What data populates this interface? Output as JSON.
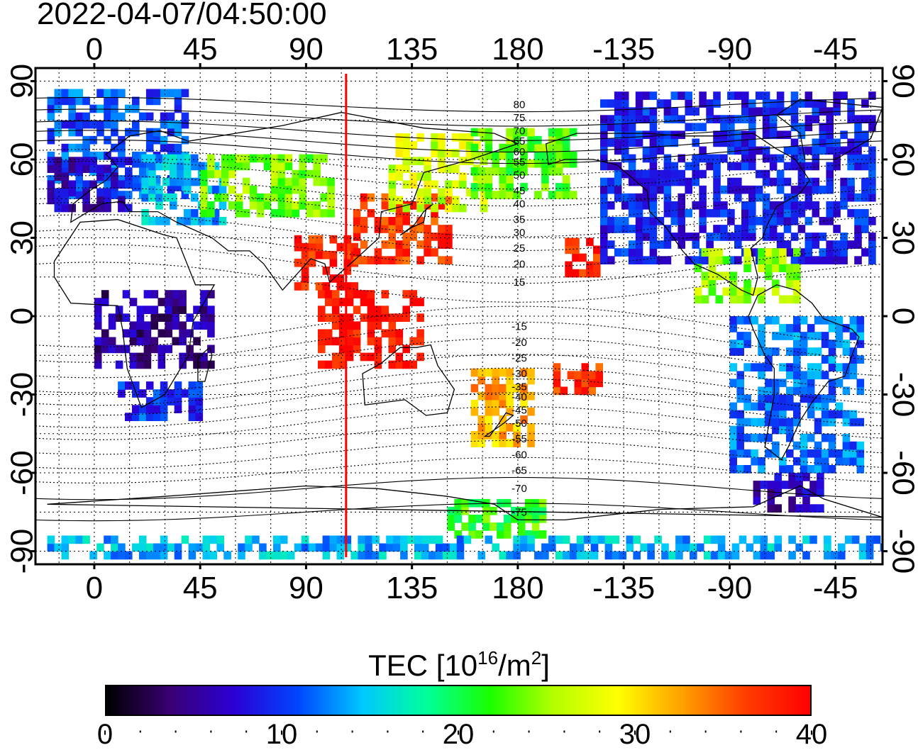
{
  "title": "2022-04-07/04:50:00",
  "map": {
    "top_axis_labels": [
      "0",
      "45",
      "90",
      "135",
      "180",
      "-135",
      "-90",
      "-45"
    ],
    "bottom_axis_labels": [
      "0",
      "45",
      "90",
      "135",
      "180",
      "-135",
      "-90",
      "-45"
    ],
    "left_axis_labels": [
      "90",
      "60",
      "30",
      "0",
      "-30",
      "-60",
      "-90"
    ],
    "right_axis_labels": [
      "90",
      "60",
      "30",
      "0",
      "-30",
      "-60",
      "-90"
    ],
    "longitude_range": [
      -25,
      335
    ],
    "latitude_range": [
      -95,
      95
    ],
    "terminator_longitude": 107,
    "terminator_color": "#ff0000",
    "magnetic_latitude_labels": [
      {
        "label": "80",
        "lat": 81
      },
      {
        "label": "75",
        "lat": 76
      },
      {
        "label": "70",
        "lat": 71
      },
      {
        "label": "65",
        "lat": 67
      },
      {
        "label": "60",
        "lat": 63
      },
      {
        "label": "55",
        "lat": 59
      },
      {
        "label": "50",
        "lat": 54
      },
      {
        "label": "45",
        "lat": 48
      },
      {
        "label": "40",
        "lat": 43
      },
      {
        "label": "35",
        "lat": 37
      },
      {
        "label": "30",
        "lat": 32
      },
      {
        "label": "25",
        "lat": 26
      },
      {
        "label": "20",
        "lat": 20
      },
      {
        "label": "15",
        "lat": 13
      },
      {
        "label": "-15",
        "lat": -4
      },
      {
        "label": "-20",
        "lat": -10
      },
      {
        "label": "-25",
        "lat": -16
      },
      {
        "label": "-30",
        "lat": -22
      },
      {
        "label": "-35",
        "lat": -27
      },
      {
        "label": "-40",
        "lat": -31
      },
      {
        "label": "-45",
        "lat": -36
      },
      {
        "label": "-50",
        "lat": -41
      },
      {
        "label": "-55",
        "lat": -47
      },
      {
        "label": "-60",
        "lat": -53
      },
      {
        "label": "-65",
        "lat": -59
      },
      {
        "label": "-70",
        "lat": -66
      },
      {
        "label": "-75",
        "lat": -75
      }
    ],
    "tec_regions": [
      {
        "lon": [
          -20,
          40
        ],
        "lat": [
          45,
          85
        ],
        "tec": 11
      },
      {
        "lon": [
          -20,
          15
        ],
        "lat": [
          40,
          60
        ],
        "tec": 7
      },
      {
        "lon": [
          20,
          55
        ],
        "lat": [
          35,
          60
        ],
        "tec": 14
      },
      {
        "lon": [
          45,
          100
        ],
        "lat": [
          38,
          60
        ],
        "tec": 24
      },
      {
        "lon": [
          85,
          110
        ],
        "lat": [
          10,
          30
        ],
        "tec": 38
      },
      {
        "lon": [
          110,
          150
        ],
        "lat": [
          20,
          45
        ],
        "tec": 37
      },
      {
        "lon": [
          95,
          140
        ],
        "lat": [
          -20,
          10
        ],
        "tec": 39
      },
      {
        "lon": [
          125,
          165
        ],
        "lat": [
          40,
          70
        ],
        "tec": 27
      },
      {
        "lon": [
          160,
          205
        ],
        "lat": [
          45,
          70
        ],
        "tec": 23
      },
      {
        "lon": [
          10,
          45
        ],
        "lat": [
          -40,
          -25
        ],
        "tec": 10
      },
      {
        "lon": [
          0,
          50
        ],
        "lat": [
          -20,
          10
        ],
        "tec": 5
      },
      {
        "lon": [
          160,
          185
        ],
        "lat": [
          -50,
          -20
        ],
        "tec": 32
      },
      {
        "lon": [
          195,
          215
        ],
        "lat": [
          -30,
          -20
        ],
        "tec": 37
      },
      {
        "lon": [
          200,
          215
        ],
        "lat": [
          15,
          28
        ],
        "tec": 38
      },
      {
        "lon": [
          215,
          330
        ],
        "lat": [
          20,
          85
        ],
        "tec": 9
      },
      {
        "lon": [
          255,
          300
        ],
        "lat": [
          5,
          25
        ],
        "tec": 25
      },
      {
        "lon": [
          270,
          325
        ],
        "lat": [
          -60,
          0
        ],
        "tec": 12
      },
      {
        "lon": [
          280,
          310
        ],
        "lat": [
          -75,
          -60
        ],
        "tec": 6
      },
      {
        "lon": [
          150,
          190
        ],
        "lat": [
          -85,
          -70
        ],
        "tec": 22
      },
      {
        "lon": [
          -20,
          335
        ],
        "lat": [
          -93,
          -85
        ],
        "tec": 14
      }
    ]
  },
  "colorbar": {
    "label_prefix": "TEC  [10",
    "label_exp1": "16",
    "label_mid": "/m",
    "label_exp2": "2",
    "label_suffix": "]",
    "min": 0,
    "max": 40,
    "tick_labels": [
      "0",
      "10",
      "20",
      "30",
      "40"
    ],
    "colors": [
      "#000000",
      "#3a0073",
      "#2b00d6",
      "#0046ff",
      "#00c8ff",
      "#00ff9a",
      "#19ff00",
      "#b4ff00",
      "#ffff00",
      "#ffa000",
      "#ff3c00",
      "#ff0000"
    ]
  }
}
